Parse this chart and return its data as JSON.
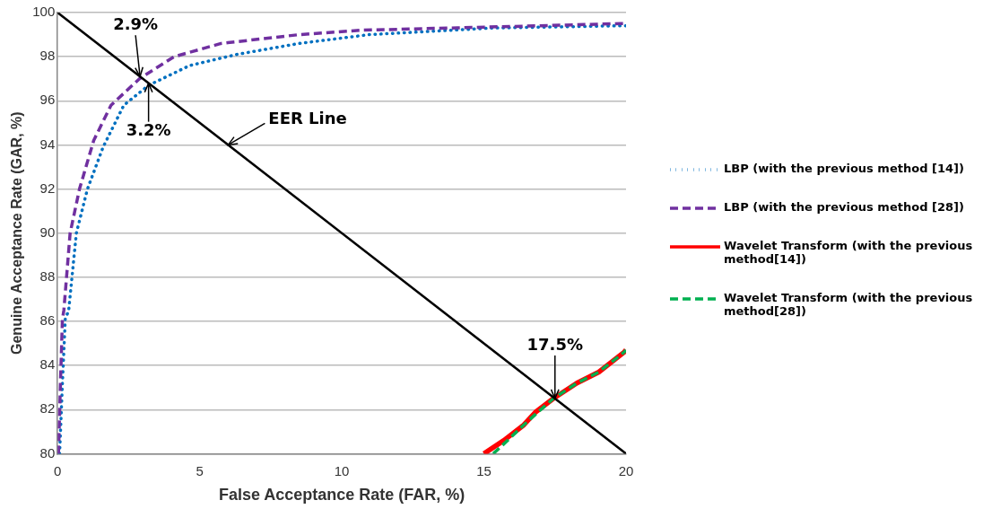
{
  "chart_data": {
    "type": "line",
    "xlabel": "False Acceptance Rate (FAR, %)",
    "ylabel": "Genuine Acceptance Rate (GAR, %)",
    "xlim": [
      0,
      20
    ],
    "xticks": [
      0,
      5,
      10,
      15,
      20
    ],
    "ylim": [
      80,
      100
    ],
    "yticks": [
      80,
      82,
      84,
      86,
      88,
      90,
      92,
      94,
      96,
      98,
      100
    ],
    "grid": "y",
    "legend": "right",
    "marker": "none",
    "series": [
      {
        "name": "LBP (with the previous method [14])",
        "color": "#0070c0",
        "line_style": "dotted",
        "x": [
          0.07,
          0.17,
          0.27,
          0.39,
          0.66,
          1.05,
          1.6,
          2.33,
          3.2,
          4.65,
          6.3,
          8.5,
          10.96,
          15.3,
          19.8,
          20
        ],
        "values": [
          80,
          83.2,
          86.1,
          86.5,
          90.0,
          92.0,
          93.9,
          95.8,
          96.7,
          97.6,
          98.1,
          98.6,
          99.0,
          99.3,
          99.4,
          99.4
        ]
      },
      {
        "name": "LBP (with the previous method [28])",
        "color": "#7030a0",
        "line_style": "dashed",
        "x": [
          0.03,
          0.1,
          0.17,
          0.22,
          0.44,
          0.77,
          1.27,
          1.88,
          2.88,
          4.1,
          5.75,
          8.5,
          10.7,
          16.9,
          19.8,
          20
        ],
        "values": [
          80,
          83.2,
          86.1,
          86.5,
          90.0,
          92.0,
          94.2,
          95.8,
          97.0,
          98.0,
          98.6,
          99.0,
          99.2,
          99.4,
          99.5,
          99.5
        ]
      },
      {
        "name": "Wavelet Transform (with the previous method[14])",
        "color": "#ff0000",
        "line_style": "solid",
        "x": [
          15.0,
          15.7,
          16.4,
          16.83,
          17.44,
          18.27,
          19.04,
          19.93,
          20
        ],
        "values": [
          80,
          80.6,
          81.3,
          81.9,
          82.5,
          83.2,
          83.7,
          84.6,
          84.7
        ]
      },
      {
        "name": "Wavelet Transform (with the previous method[28])",
        "color": "#00b050",
        "line_style": "dashed",
        "x": [
          15.33,
          15.83,
          16.4,
          16.83,
          17.44,
          18.27,
          19.04,
          19.93,
          20
        ],
        "values": [
          80,
          80.6,
          81.3,
          81.8,
          82.5,
          83.2,
          83.7,
          84.6,
          84.7
        ]
      },
      {
        "color": "#000000",
        "line_style": "solid",
        "x": [
          0,
          20
        ],
        "values": [
          100,
          80
        ]
      }
    ],
    "annotations": [
      {
        "text": "2.9%",
        "x": 2.9,
        "y": 97.1
      },
      {
        "text": "3.2%",
        "x": 3.2,
        "y": 96.8
      },
      {
        "text": "EER Line",
        "x": 6,
        "y": 94
      },
      {
        "text": "17.5%",
        "x": 17.5,
        "y": 82.5
      }
    ]
  }
}
